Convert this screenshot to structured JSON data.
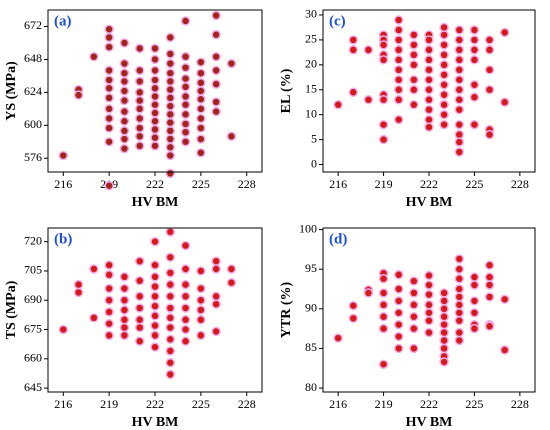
{
  "chart_data": [
    {
      "type": "scatter",
      "annotation": "(a)",
      "xlabel": "HV BM",
      "ylabel": "YS (MPa)",
      "color": "#a3241c",
      "halo": "#f5a9e8",
      "xlim": [
        215,
        229
      ],
      "xticks": [
        216,
        219,
        222,
        225,
        228
      ],
      "ylim": [
        566,
        684
      ],
      "yticks": [
        576,
        600,
        624,
        648,
        672
      ],
      "x": [
        216,
        217,
        217,
        218,
        219,
        219,
        219,
        219,
        219,
        219,
        219,
        219,
        219,
        219,
        219,
        219,
        220,
        220,
        220,
        220,
        220,
        220,
        220,
        220,
        220,
        220,
        220,
        221,
        221,
        221,
        221,
        221,
        221,
        221,
        221,
        221,
        221,
        222,
        222,
        222,
        222,
        222,
        222,
        222,
        222,
        222,
        222,
        222,
        222,
        223,
        223,
        223,
        223,
        223,
        223,
        223,
        223,
        223,
        223,
        223,
        223,
        223,
        223,
        223,
        224,
        224,
        224,
        224,
        224,
        224,
        224,
        224,
        224,
        224,
        224,
        225,
        225,
        225,
        225,
        225,
        225,
        225,
        225,
        225,
        225,
        226,
        226,
        226,
        226,
        226,
        226,
        226,
        227,
        227
      ],
      "values": [
        578,
        626,
        622,
        650,
        670,
        664,
        657,
        640,
        633,
        627,
        620,
        612,
        605,
        598,
        588,
        556,
        660,
        645,
        638,
        632,
        625,
        618,
        610,
        603,
        596,
        590,
        583,
        656,
        640,
        632,
        624,
        618,
        612,
        605,
        598,
        592,
        585,
        656,
        648,
        640,
        633,
        627,
        621,
        615,
        609,
        603,
        597,
        591,
        585,
        664,
        652,
        645,
        638,
        632,
        626,
        620,
        614,
        608,
        602,
        596,
        590,
        584,
        578,
        565,
        676,
        650,
        642,
        634,
        628,
        621,
        615,
        608,
        601,
        595,
        588,
        646,
        638,
        631,
        625,
        619,
        612,
        605,
        598,
        590,
        580,
        680,
        666,
        650,
        640,
        630,
        617,
        610,
        645,
        592
      ]
    },
    {
      "type": "scatter",
      "annotation": "(c)",
      "xlabel": "HV BM",
      "ylabel": "EL (%)",
      "color": "#d41a1a",
      "halo": "#f5a9e8",
      "xlim": [
        215,
        229
      ],
      "xticks": [
        216,
        219,
        222,
        225,
        228
      ],
      "ylim": [
        -1.5,
        31
      ],
      "yticks": [
        0,
        5,
        10,
        15,
        20,
        25,
        30
      ],
      "x": [
        216,
        217,
        217,
        217,
        218,
        218,
        219,
        219,
        219,
        219,
        219,
        219,
        219,
        219,
        219,
        220,
        220,
        220,
        220,
        220,
        220,
        220,
        220,
        220,
        220,
        221,
        221,
        221,
        221,
        221,
        221,
        221,
        222,
        222,
        222,
        222,
        222,
        222,
        222,
        222,
        222,
        222,
        222,
        223,
        223,
        223,
        223,
        223,
        223,
        223,
        223,
        223,
        223,
        223,
        224,
        224,
        224,
        224,
        224,
        224,
        224,
        224,
        224,
        224,
        224,
        224,
        224,
        225,
        225,
        225,
        225,
        225,
        225,
        225,
        226,
        226,
        226,
        226,
        226,
        226,
        227,
        227
      ],
      "values": [
        12,
        25,
        23,
        14.5,
        23,
        13,
        26,
        25,
        24,
        22,
        21,
        14,
        13,
        8,
        5,
        29,
        27,
        25,
        23,
        21,
        19,
        17,
        15,
        13,
        9,
        26,
        24,
        22,
        20,
        17,
        15,
        12,
        26,
        25,
        23,
        21,
        19,
        17,
        15,
        13,
        11,
        9,
        7.5,
        27.5,
        26,
        24,
        22,
        20,
        18,
        16,
        14,
        12,
        10,
        8,
        27,
        25,
        23,
        21,
        19,
        17,
        15,
        13,
        11,
        8,
        6,
        4.5,
        2.5,
        27,
        25,
        23,
        21,
        16,
        13.5,
        8,
        25,
        23,
        19,
        15,
        7,
        6,
        26.5,
        12.5
      ]
    },
    {
      "type": "scatter",
      "annotation": "(b)",
      "xlabel": "HV BM",
      "ylabel": "TS (MPa)",
      "color": "#d41a1a",
      "halo": "#f5a9e8",
      "xlim": [
        215,
        229
      ],
      "xticks": [
        216,
        219,
        222,
        225,
        228
      ],
      "ylim": [
        643,
        727
      ],
      "yticks": [
        645,
        660,
        675,
        690,
        705,
        720
      ],
      "x": [
        216,
        217,
        217,
        218,
        218,
        219,
        219,
        219,
        219,
        219,
        219,
        219,
        220,
        220,
        220,
        220,
        220,
        220,
        220,
        221,
        221,
        221,
        221,
        221,
        221,
        221,
        222,
        222,
        222,
        222,
        222,
        222,
        222,
        222,
        222,
        222,
        223,
        223,
        223,
        223,
        223,
        223,
        223,
        223,
        223,
        223,
        223,
        223,
        224,
        224,
        224,
        224,
        224,
        224,
        224,
        224,
        225,
        225,
        225,
        225,
        225,
        225,
        226,
        226,
        226,
        226,
        226,
        227,
        227
      ],
      "values": [
        675,
        698,
        694,
        706,
        681,
        708,
        703,
        696,
        690,
        684,
        678,
        672,
        702,
        696,
        690,
        685,
        680,
        676,
        672,
        710,
        700,
        692,
        686,
        680,
        676,
        669,
        720,
        708,
        702,
        697,
        692,
        687,
        682,
        677,
        672,
        666,
        725,
        712,
        704,
        698,
        692,
        686,
        681,
        676,
        670,
        664,
        658,
        652,
        718,
        706,
        698,
        692,
        686,
        680,
        675,
        669,
        705,
        696,
        690,
        685,
        680,
        672,
        710,
        706,
        692,
        688,
        674,
        706,
        699
      ]
    },
    {
      "type": "scatter",
      "annotation": "(d)",
      "xlabel": "HV BM",
      "ylabel": "YTR (%)",
      "color": "#d41a1a",
      "halo": "#f5a9e8",
      "xlim": [
        215,
        229
      ],
      "xticks": [
        216,
        219,
        222,
        225,
        228
      ],
      "ylim": [
        79.5,
        100.2
      ],
      "yticks": [
        80,
        85,
        90,
        95,
        100
      ],
      "x": [
        216,
        217,
        217,
        218,
        218,
        219,
        219,
        219,
        219,
        219,
        219,
        219,
        220,
        220,
        220,
        220,
        220,
        220,
        220,
        221,
        221,
        221,
        221,
        221,
        221,
        222,
        222,
        222,
        222,
        222,
        222,
        222,
        223,
        223,
        223,
        223,
        223,
        223,
        223,
        223,
        223,
        223,
        224,
        224,
        224,
        224,
        224,
        224,
        224,
        224,
        224,
        224,
        225,
        225,
        225,
        225,
        225,
        225,
        226,
        226,
        226,
        226,
        226,
        226,
        227,
        227
      ],
      "values": [
        86.3,
        90.4,
        88.8,
        92.4,
        92.0,
        94.5,
        93.8,
        92,
        90.5,
        89,
        87.5,
        83,
        94.3,
        92.5,
        91,
        89.5,
        88,
        86.5,
        85,
        93.5,
        92,
        90.5,
        89,
        87.5,
        85,
        94.2,
        93,
        91.8,
        90.5,
        89.5,
        88.5,
        87,
        92,
        91,
        90,
        89,
        88,
        87,
        86,
        85,
        84,
        83.3,
        96.3,
        95,
        93.8,
        92.5,
        91.5,
        90.5,
        89.5,
        88.5,
        87,
        86,
        94,
        93,
        91,
        89.5,
        88,
        87.5,
        95.5,
        94,
        93,
        91.5,
        88,
        87.8,
        91.2,
        84.8
      ]
    }
  ]
}
